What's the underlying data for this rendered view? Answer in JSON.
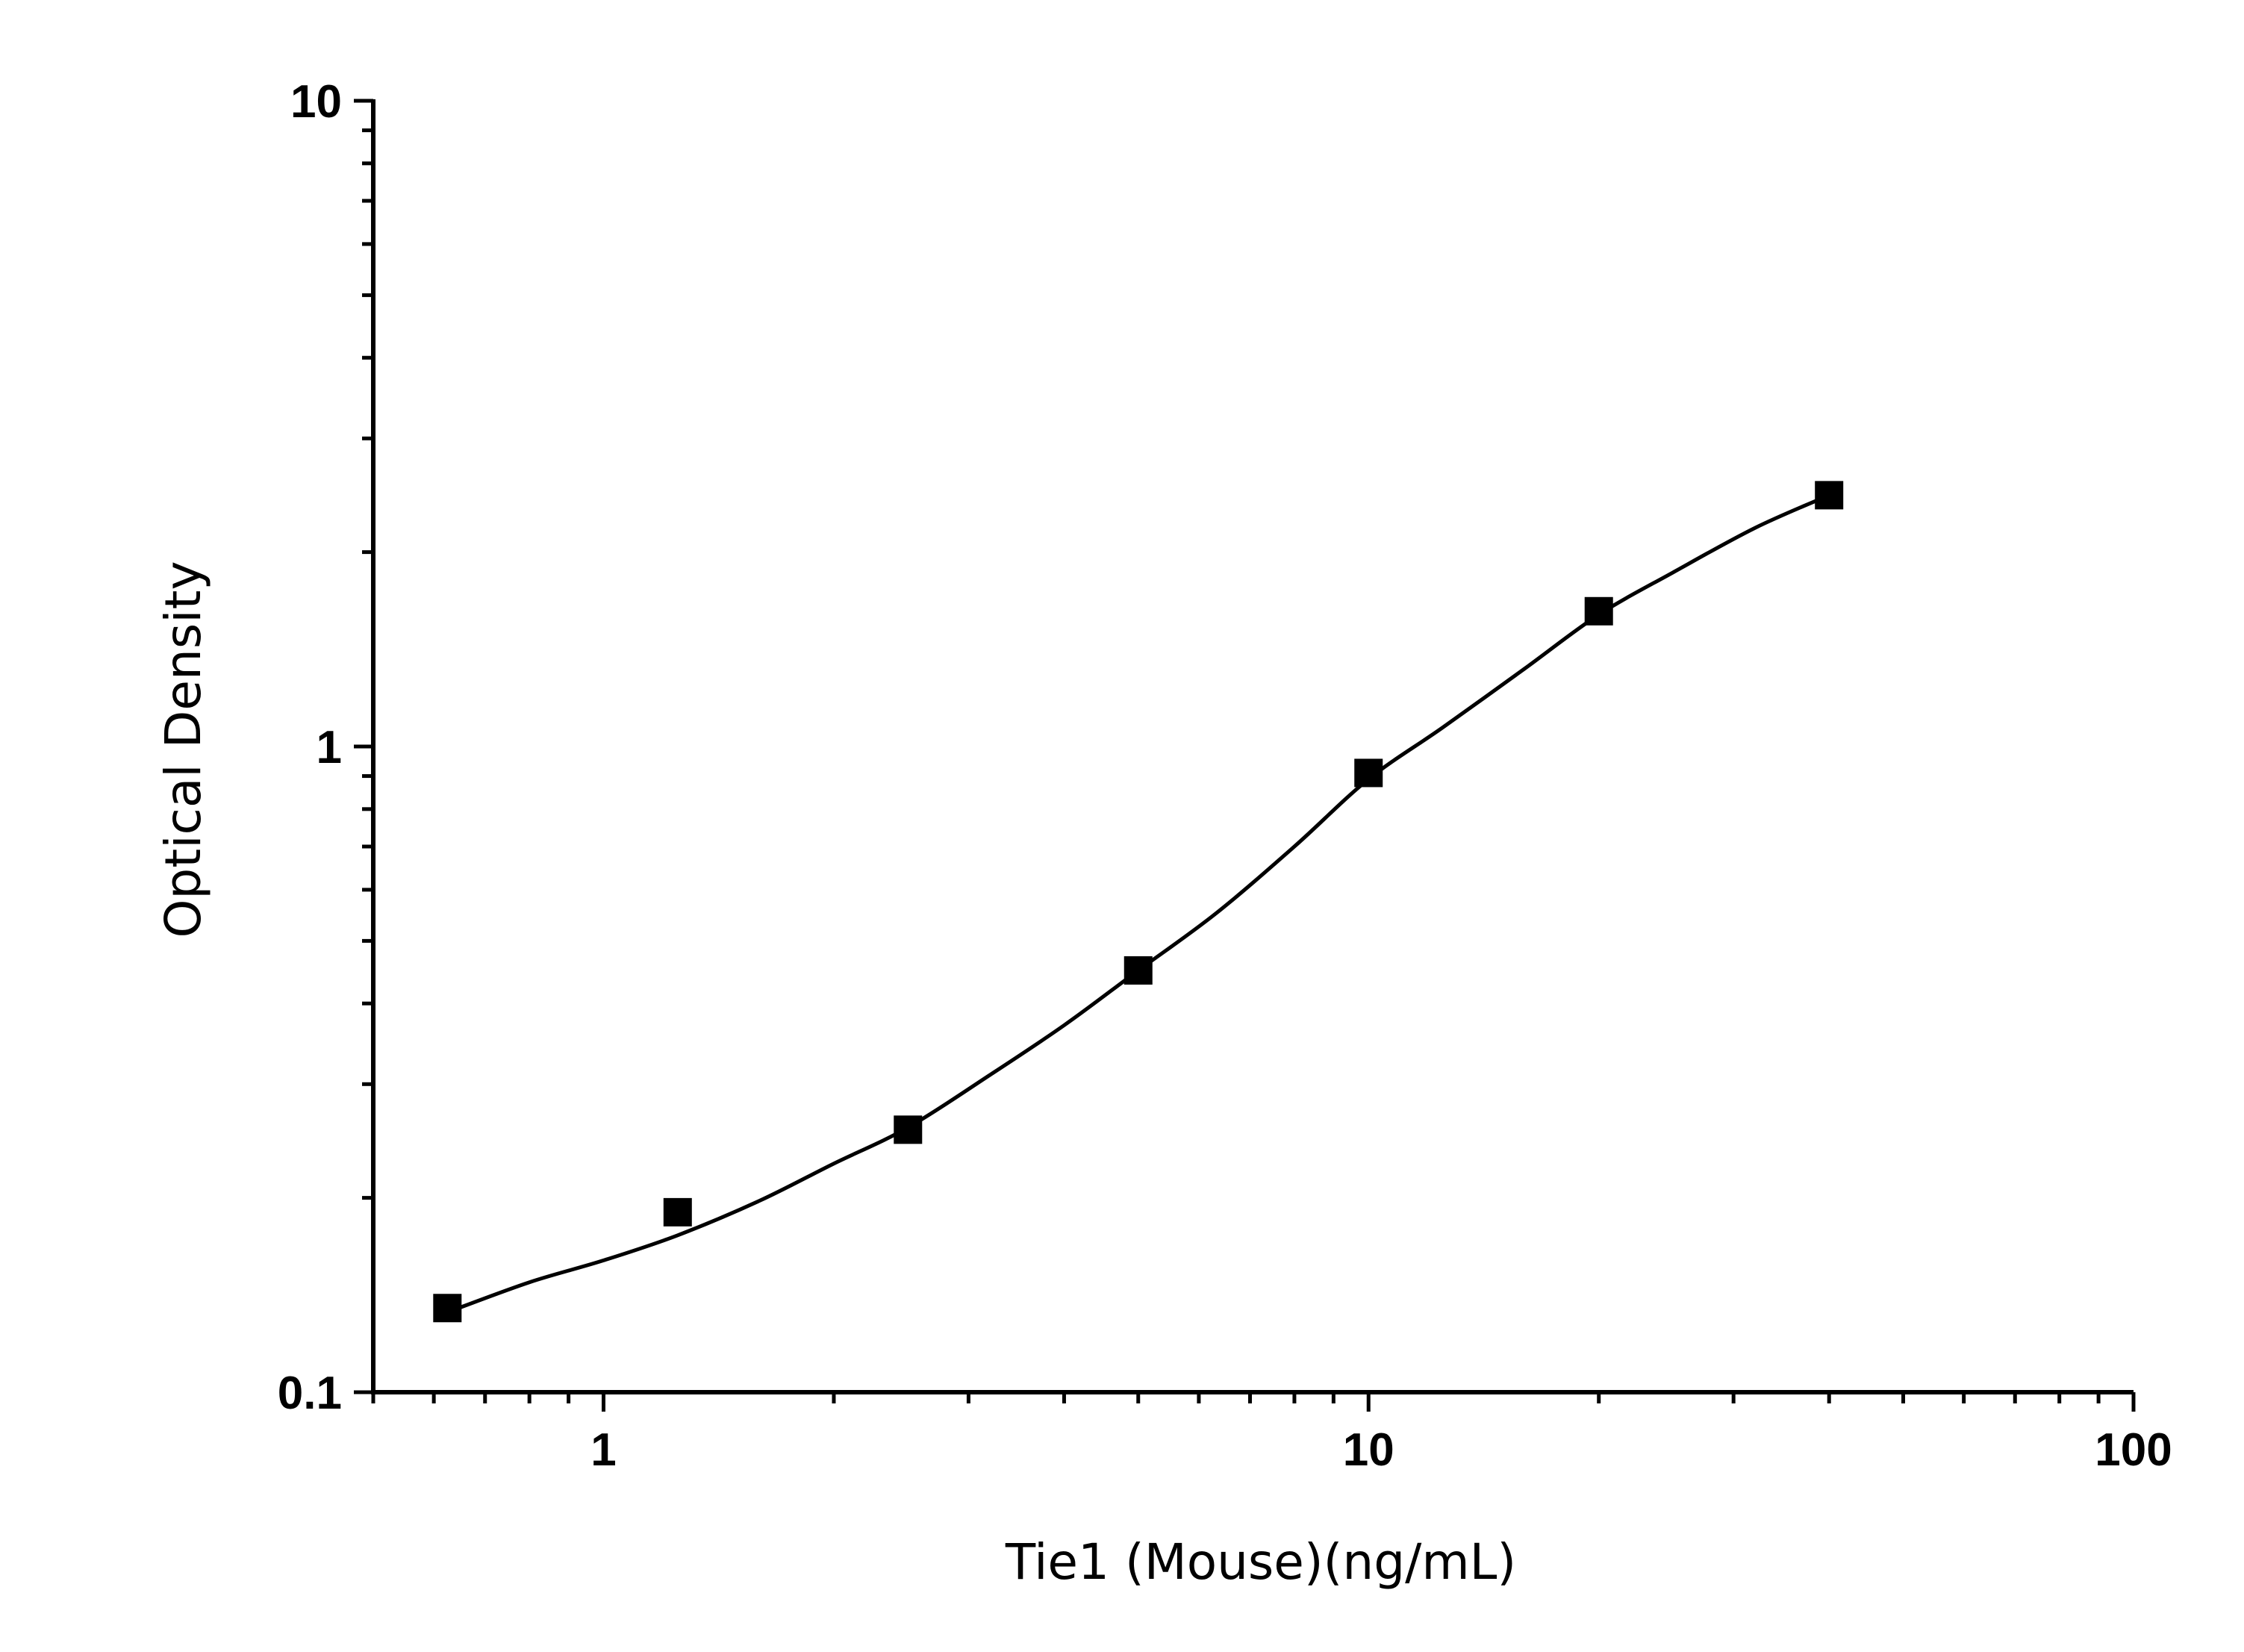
{
  "chart_data": {
    "type": "scatter",
    "title": "",
    "xlabel": "Tie1 (Mouse)(ng/mL)",
    "ylabel": "Optical Density",
    "x_scale": "log",
    "y_scale": "log",
    "xlim": [
      0.5,
      100
    ],
    "ylim": [
      0.1,
      10
    ],
    "x_tick_labels": [
      "1",
      "10",
      "100"
    ],
    "y_tick_labels": [
      "0.1",
      "1",
      "10"
    ],
    "grid": false,
    "legend": "none",
    "series": [
      {
        "marker": "filled-square",
        "color": "#000000",
        "x": [
          0.625,
          1.25,
          2.5,
          5,
          10,
          20,
          40
        ],
        "y": [
          0.135,
          0.19,
          0.255,
          0.45,
          0.91,
          1.62,
          2.45
        ]
      }
    ],
    "fit_curve": {
      "type": "four-parameter-logistic",
      "color": "#000000",
      "x": [
        0.625,
        0.8,
        1,
        1.25,
        1.6,
        2,
        2.5,
        3.2,
        4,
        5,
        6.3,
        8,
        10,
        12.5,
        16,
        20,
        25,
        32,
        40
      ],
      "y": [
        0.133,
        0.148,
        0.16,
        0.175,
        0.198,
        0.226,
        0.257,
        0.31,
        0.37,
        0.45,
        0.55,
        0.7,
        0.89,
        1.07,
        1.32,
        1.6,
        1.86,
        2.18,
        2.45
      ]
    }
  }
}
